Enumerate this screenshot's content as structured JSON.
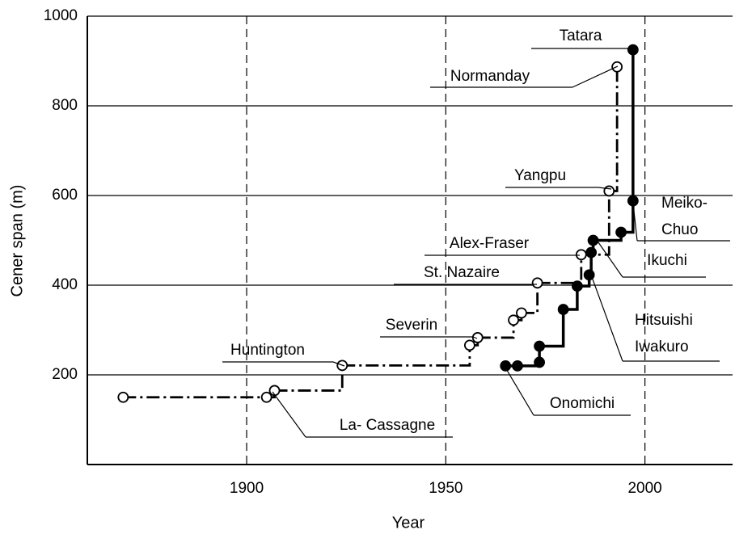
{
  "chart_data": {
    "type": "step",
    "xlabel": "Year",
    "ylabel": "Cener span (m)",
    "xlim": [
      1860,
      2022
    ],
    "ylim": [
      0,
      1000
    ],
    "xticks": [
      1900,
      1950,
      2000
    ],
    "yticks": [
      200,
      400,
      600,
      800,
      1000
    ],
    "grid": true,
    "series": [
      {
        "marker": "open",
        "color": "#000000",
        "x": [
          1869,
          1905,
          1907,
          1924,
          1956,
          1958,
          1967,
          1969,
          1973,
          1984,
          1991,
          1993
        ],
        "values": [
          150,
          150,
          165,
          221,
          266,
          283,
          322,
          338,
          405,
          468,
          610,
          887
        ]
      },
      {
        "marker": "filled",
        "color": "#000000",
        "x": [
          1965,
          1968,
          1973.5,
          1973.5,
          1979.5,
          1983,
          1986,
          1986.5,
          1987,
          1994,
          1997,
          1997
        ],
        "values": [
          220,
          220,
          228,
          264,
          346,
          398,
          423,
          473,
          500,
          518,
          588,
          925
        ]
      }
    ],
    "annotations": [
      [
        "Tatara"
      ],
      [
        "Normanday"
      ],
      [
        "Yangpu"
      ],
      [
        "Alex-Fraser"
      ],
      [
        "St. Nazaire"
      ],
      [
        "Severin"
      ],
      [
        "Huntington"
      ],
      [
        "La- Cassagne"
      ],
      [
        "Onomichi"
      ],
      [
        "Hitsuishi",
        "Iwakuro"
      ],
      [
        "Ikuchi"
      ],
      [
        "Meiko-",
        "Chuo"
      ]
    ]
  }
}
